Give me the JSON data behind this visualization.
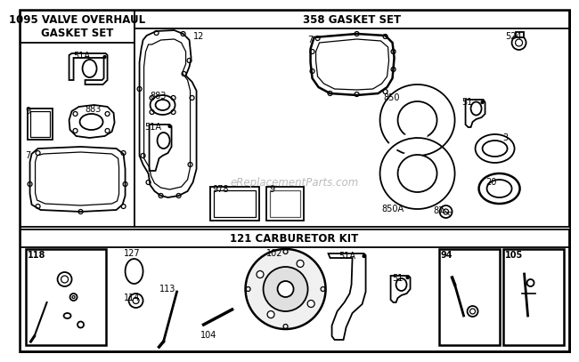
{
  "bg_color": "#ffffff",
  "section1_title": "1095 VALVE OVERHAUL\nGASKET SET",
  "section2_title": "358 GASKET SET",
  "section3_title": "121 CARBURETOR KIT",
  "watermark": "eReplacementParts.com",
  "lw_thick": 1.8,
  "lw_med": 1.3,
  "lw_thin": 0.9,
  "label_fs": 7.0,
  "title_fs": 8.5
}
